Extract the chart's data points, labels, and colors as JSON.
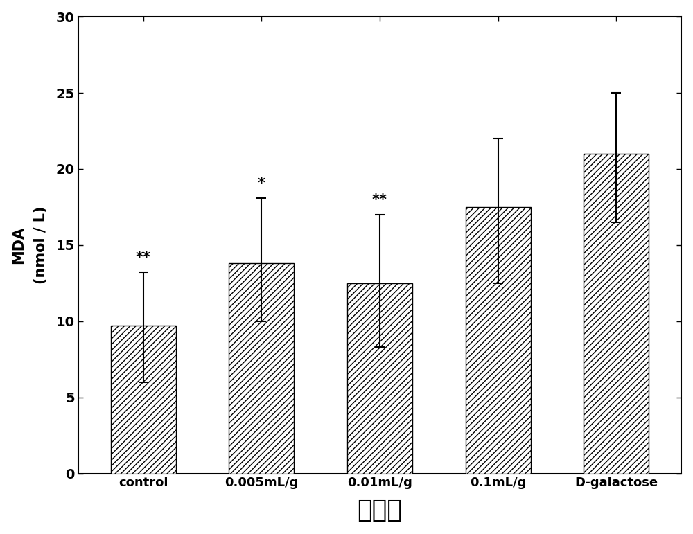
{
  "categories": [
    "control",
    "0.005mL/g",
    "0.01mL/g",
    "0.1mL/g",
    "D-galactose"
  ],
  "values": [
    9.7,
    13.8,
    12.5,
    17.5,
    21.0
  ],
  "errors_upper": [
    3.5,
    4.3,
    4.5,
    4.5,
    4.0
  ],
  "errors_lower": [
    3.7,
    3.8,
    4.2,
    5.0,
    4.5
  ],
  "significance": [
    "**",
    "*",
    "**",
    "",
    ""
  ],
  "ylabel_line1": "MDA",
  "ylabel_line2": "(nmol / L)",
  "xlabel": "分　组",
  "ylim": [
    0,
    30
  ],
  "yticks": [
    0,
    5,
    10,
    15,
    20,
    25,
    30
  ],
  "bar_color": "#ffffff",
  "hatch": "////",
  "background_color": "#ffffff",
  "figure_bg": "#ffffff",
  "bar_edge_color": "#000000",
  "bar_width": 0.55,
  "sig_fontsize": 15,
  "xlabel_fontsize": 26,
  "ylabel_fontsize": 15,
  "tick_fontsize": 14,
  "xtick_fontsize": 13
}
